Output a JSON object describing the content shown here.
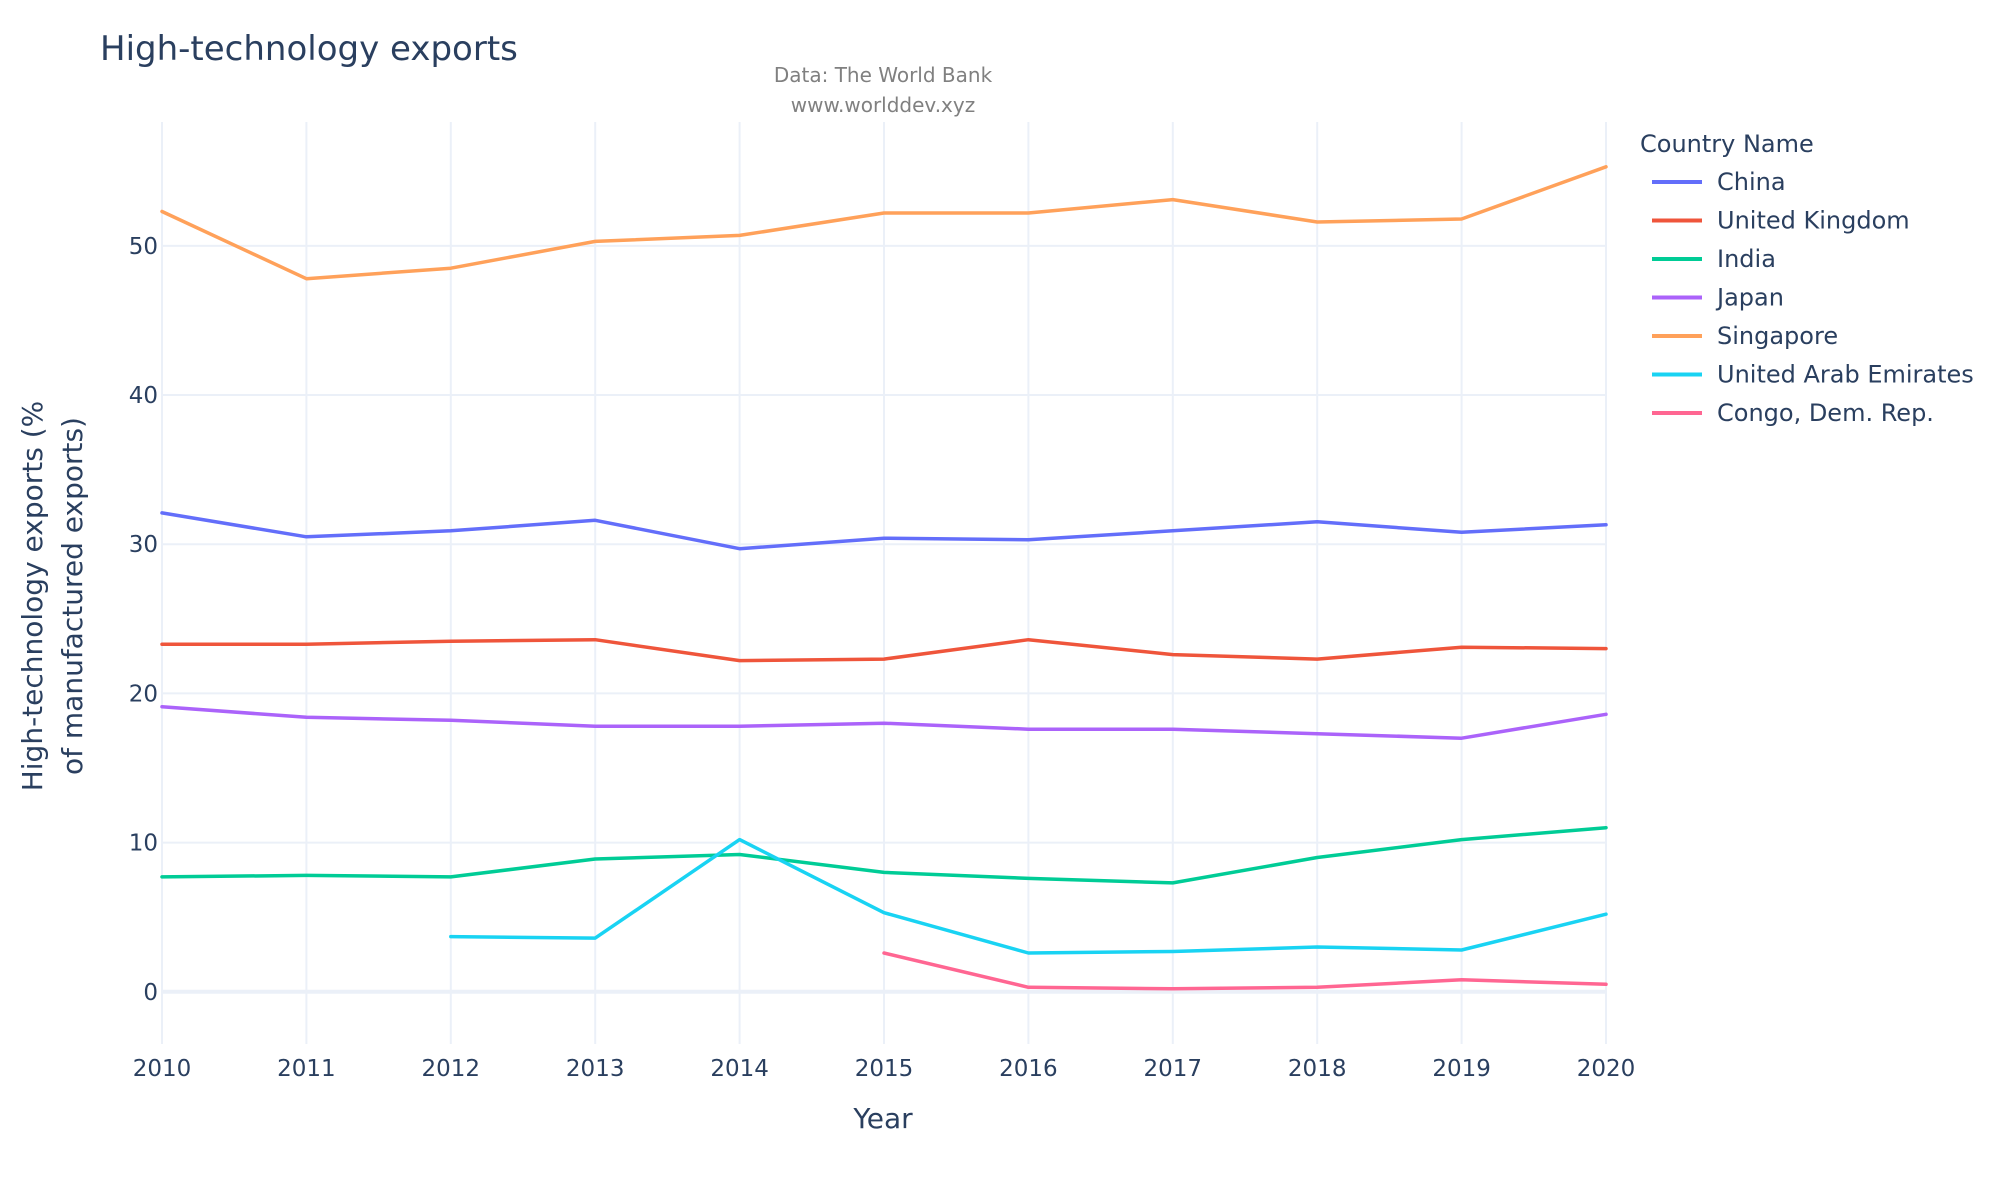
{
  "chart_data": {
    "type": "line",
    "title": "High-technology exports",
    "subtitle_lines": [
      "Data: The World Bank",
      "www.worlddev.xyz"
    ],
    "xlabel": "Year",
    "ylabel_lines": [
      "High-technology exports (%",
      "of manufactured exports)"
    ],
    "legend_title": "Country Name",
    "legend_position": "right",
    "grid": true,
    "x": [
      2010,
      2011,
      2012,
      2013,
      2014,
      2015,
      2016,
      2017,
      2018,
      2019,
      2020
    ],
    "x_ticks": [
      "2010",
      "2011",
      "2012",
      "2013",
      "2014",
      "2015",
      "2016",
      "2017",
      "2018",
      "2019",
      "2020"
    ],
    "y_ticks": [
      0,
      10,
      20,
      30,
      40,
      50
    ],
    "xlim": [
      2010,
      2020
    ],
    "ylim": [
      -3.5,
      58.3
    ],
    "series": [
      {
        "name": "China",
        "color": "#636efa",
        "values": [
          32.1,
          30.5,
          30.9,
          31.6,
          29.7,
          30.4,
          30.3,
          30.9,
          31.5,
          30.8,
          31.3
        ]
      },
      {
        "name": "United Kingdom",
        "color": "#ef553b",
        "values": [
          23.3,
          23.3,
          23.5,
          23.6,
          22.2,
          22.3,
          23.6,
          22.6,
          22.3,
          23.1,
          23.0
        ]
      },
      {
        "name": "India",
        "color": "#00cc96",
        "values": [
          7.7,
          7.8,
          7.7,
          8.9,
          9.2,
          8.0,
          7.6,
          7.3,
          9.0,
          10.2,
          11.0
        ]
      },
      {
        "name": "Japan",
        "color": "#ab63fa",
        "values": [
          19.1,
          18.4,
          18.2,
          17.8,
          17.8,
          18.0,
          17.6,
          17.6,
          17.3,
          17.0,
          18.6
        ]
      },
      {
        "name": "Singapore",
        "color": "#ffa15a",
        "values": [
          52.3,
          47.8,
          48.5,
          50.3,
          50.7,
          52.2,
          52.2,
          53.1,
          51.6,
          51.8,
          55.3
        ]
      },
      {
        "name": "United Arab Emirates",
        "color": "#19d3f3",
        "values": [
          null,
          null,
          3.7,
          3.6,
          10.2,
          5.3,
          2.6,
          2.7,
          3.0,
          2.8,
          5.2
        ]
      },
      {
        "name": "Congo, Dem. Rep.",
        "color": "#ff6692",
        "values": [
          null,
          null,
          null,
          null,
          null,
          2.6,
          0.3,
          0.2,
          0.3,
          0.8,
          0.5
        ]
      }
    ]
  }
}
